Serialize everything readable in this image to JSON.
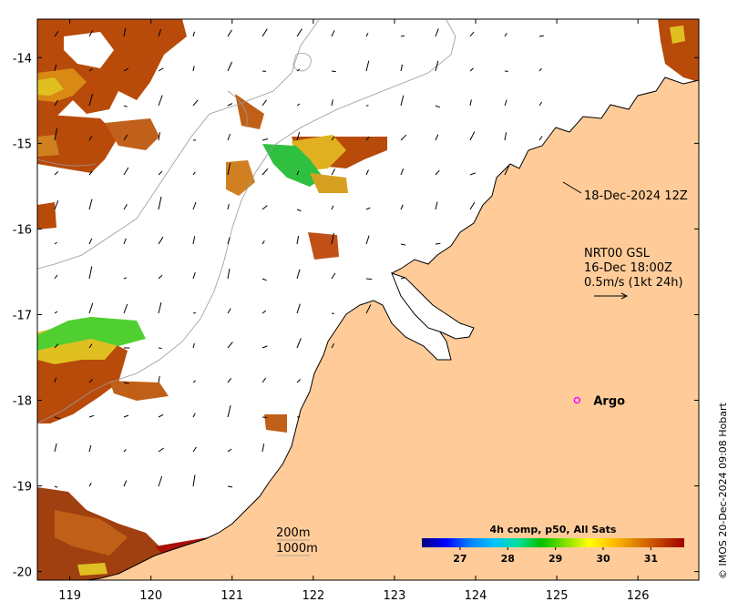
{
  "map": {
    "lon_range": [
      118.6,
      126.75
    ],
    "lat_range": [
      -20.1,
      -13.55
    ],
    "x_ticks": [
      119,
      120,
      121,
      122,
      123,
      124,
      125,
      126
    ],
    "y_ticks": [
      -14,
      -15,
      -16,
      -17,
      -18,
      -19,
      -20
    ],
    "x_tick_labels": [
      "119",
      "120",
      "121",
      "122",
      "123",
      "124",
      "125",
      "126"
    ],
    "y_tick_labels": [
      "-14",
      "-15",
      "-16",
      "-17",
      "-18",
      "-19",
      "-20"
    ],
    "colors": {
      "land": "#ffcc99",
      "coast": "#000000",
      "bathymetry": "#999999",
      "ocean_no_data": "#ffffff"
    }
  },
  "annotations": {
    "current_date": "18-Dec-2024 12Z",
    "current_source": "NRT00 GSL",
    "current_time": "16-Dec 18:00Z",
    "current_scale": "0.5m/s (1kt 24h)",
    "argo_label": "Argo",
    "argo_position": [
      125.25,
      -18.0
    ],
    "argo_color": "#ff00ff",
    "isobath_200": "200m",
    "isobath_1000": "1000m"
  },
  "colorbar": {
    "title": "4h comp, p50, All Sats",
    "tick_labels": [
      "27",
      "28",
      "29",
      "30",
      "31"
    ],
    "tick_values": [
      27,
      28,
      29,
      30,
      31
    ],
    "range": [
      26.2,
      31.7
    ],
    "colors": [
      "#000080",
      "#0000ff",
      "#0080ff",
      "#00c0ff",
      "#00e0a0",
      "#00c000",
      "#80e000",
      "#ffff00",
      "#ffc000",
      "#e08000",
      "#c04000",
      "#a00000"
    ]
  },
  "credit": "© IMOS 20-Dec-2024 09:08 Hobart"
}
